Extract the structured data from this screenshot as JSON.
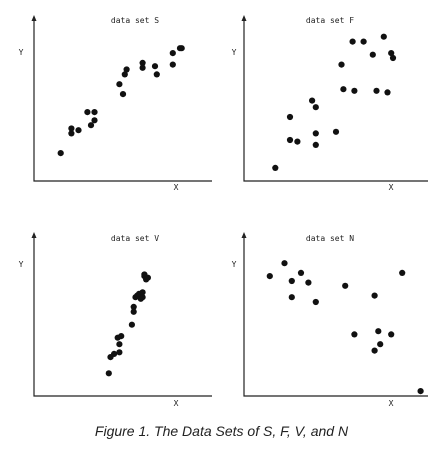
{
  "caption": "Figure 1. The Data Sets of S, F, V, and N",
  "chart_data": [
    {
      "type": "scatter",
      "title": "data set S",
      "xlabel": "X",
      "ylabel": "Y",
      "grid": false,
      "x": [
        15,
        21,
        21,
        25,
        30,
        32,
        34,
        34,
        48,
        50,
        51,
        52,
        61,
        61,
        68,
        69,
        78,
        78,
        82,
        83
      ],
      "y": [
        17,
        29,
        32,
        31,
        42,
        34,
        42,
        37,
        59,
        53,
        65,
        68,
        72,
        69,
        70,
        65,
        78,
        71,
        81,
        81
      ]
    },
    {
      "type": "scatter",
      "title": "data set F",
      "xlabel": "X",
      "ylabel": "Y",
      "grid": false,
      "x": [
        17,
        25,
        25,
        29,
        37,
        39,
        39,
        39,
        50,
        53,
        54,
        59,
        60,
        65,
        70,
        72,
        76,
        78,
        80,
        81
      ],
      "y": [
        8,
        39,
        25,
        24,
        49,
        22,
        29,
        45,
        30,
        71,
        56,
        85,
        55,
        85,
        77,
        55,
        88,
        54,
        78,
        75
      ]
    },
    {
      "type": "scatter",
      "title": "data set V",
      "xlabel": "X",
      "ylabel": "Y",
      "grid": false,
      "x": [
        42,
        43,
        45,
        47,
        48,
        48,
        49,
        55,
        56,
        56,
        57,
        58,
        59,
        60,
        61,
        61,
        62,
        62,
        63,
        64
      ],
      "y": [
        14,
        24,
        26,
        36,
        32,
        27,
        37,
        44,
        52,
        55,
        61,
        62,
        63,
        60,
        64,
        61,
        74,
        75,
        72,
        73
      ]
    },
    {
      "type": "scatter",
      "title": "data set N",
      "xlabel": "X",
      "ylabel": "Y",
      "grid": false,
      "x": [
        14,
        22,
        26,
        26,
        31,
        35,
        39,
        55,
        60,
        71,
        71,
        73,
        74,
        80,
        86,
        96
      ],
      "y": [
        74,
        82,
        71,
        61,
        76,
        70,
        58,
        68,
        38,
        28,
        62,
        40,
        32,
        38,
        76,
        3
      ]
    }
  ]
}
